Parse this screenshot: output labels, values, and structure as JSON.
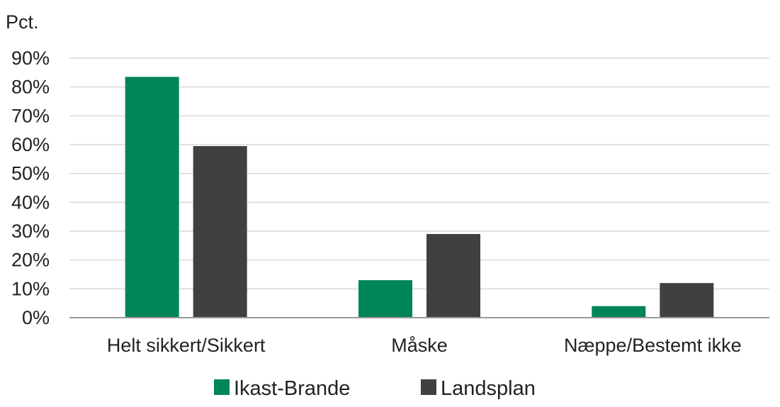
{
  "chart_data": {
    "type": "bar",
    "unit_label": "Pct.",
    "categories": [
      "Helt sikkert/Sikkert",
      "Måske",
      "Næppe/Bestemt ikke"
    ],
    "series": [
      {
        "name": "Ikast-Brande",
        "color": "#008556",
        "values": [
          83.5,
          13,
          4
        ]
      },
      {
        "name": "Landsplan",
        "color": "#404040",
        "values": [
          59.5,
          29,
          12
        ]
      }
    ],
    "y_ticks": [
      "0%",
      "10%",
      "20%",
      "30%",
      "40%",
      "50%",
      "60%",
      "70%",
      "80%",
      "90%"
    ],
    "ylim": [
      0,
      90
    ],
    "grid": true,
    "legend_position": "bottom"
  }
}
